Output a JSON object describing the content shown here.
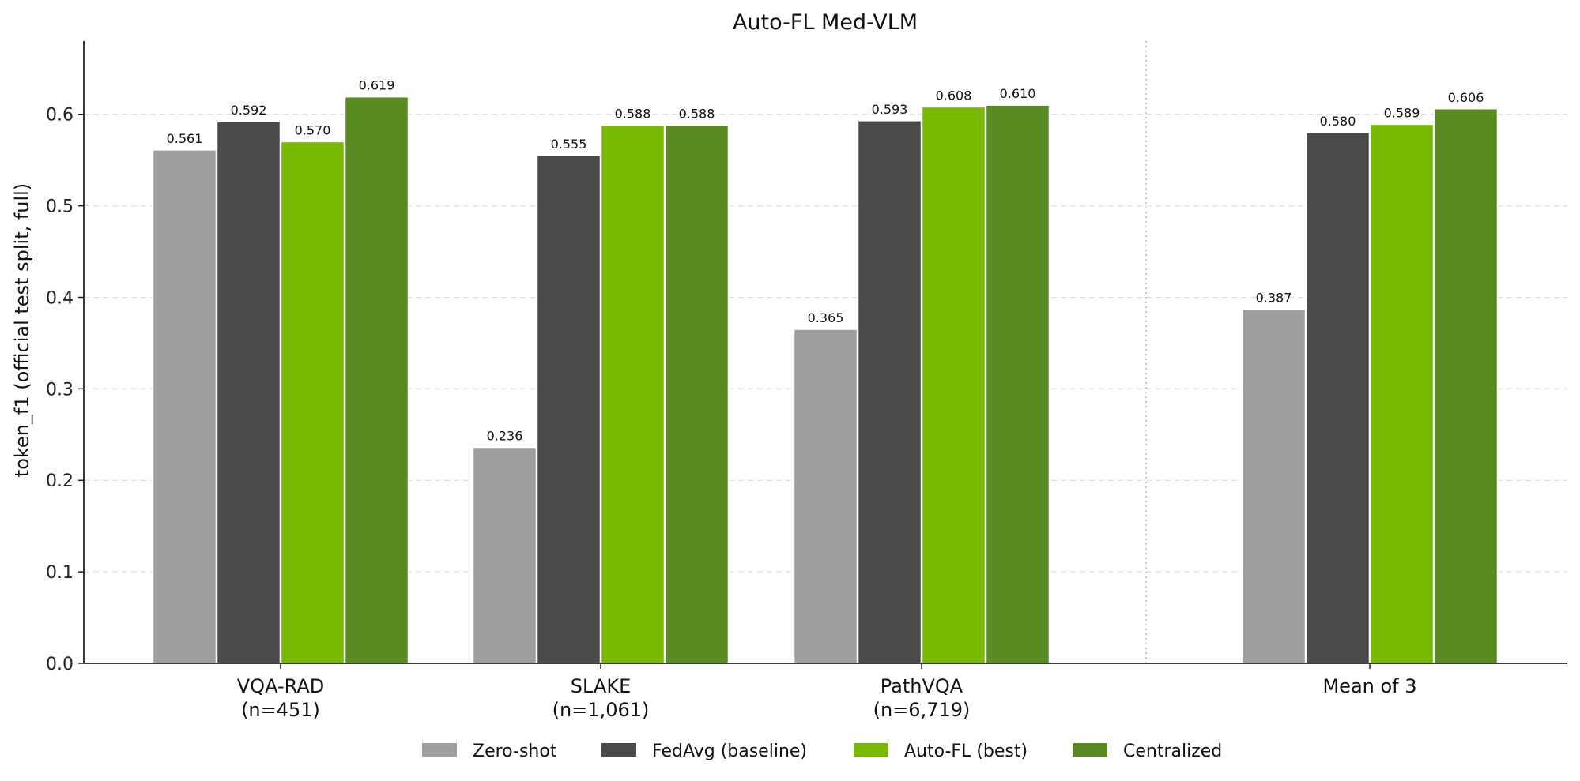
{
  "chart_data": {
    "type": "bar",
    "title": "Auto-FL Med-VLM",
    "xlabel": "",
    "ylabel": "token_f1 (official test split, full)",
    "ylim": [
      0,
      0.68
    ],
    "yticks": [
      "0.0",
      "0.1",
      "0.2",
      "0.3",
      "0.4",
      "0.5",
      "0.6"
    ],
    "grid": "horizontal dashed",
    "legend_position": "bottom-center",
    "categories": [
      {
        "line1": "VQA-RAD",
        "line2": "(n=451)"
      },
      {
        "line1": "SLAKE",
        "line2": "(n=1,061)"
      },
      {
        "line1": "PathVQA",
        "line2": "(n=6,719)"
      },
      {
        "line1": "Mean of 3",
        "line2": ""
      }
    ],
    "series": [
      {
        "name": "Zero-shot",
        "color": "#9e9e9e",
        "values": [
          0.561,
          0.236,
          0.365,
          0.387
        ],
        "labels": [
          "0.561",
          "0.236",
          "0.365",
          "0.387"
        ]
      },
      {
        "name": "FedAvg (baseline)",
        "color": "#4a4a4a",
        "values": [
          0.592,
          0.555,
          0.593,
          0.58
        ],
        "labels": [
          "0.592",
          "0.555",
          "0.593",
          "0.580"
        ]
      },
      {
        "name": "Auto-FL (best)",
        "color": "#76b900",
        "values": [
          0.57,
          0.588,
          0.608,
          0.589
        ],
        "labels": [
          "0.570",
          "0.588",
          "0.608",
          "0.589"
        ]
      },
      {
        "name": "Centralized",
        "color": "#5a8a22",
        "values": [
          0.619,
          0.588,
          0.61,
          0.606
        ],
        "labels": [
          "0.619",
          "0.588",
          "0.610",
          "0.606"
        ]
      }
    ]
  }
}
